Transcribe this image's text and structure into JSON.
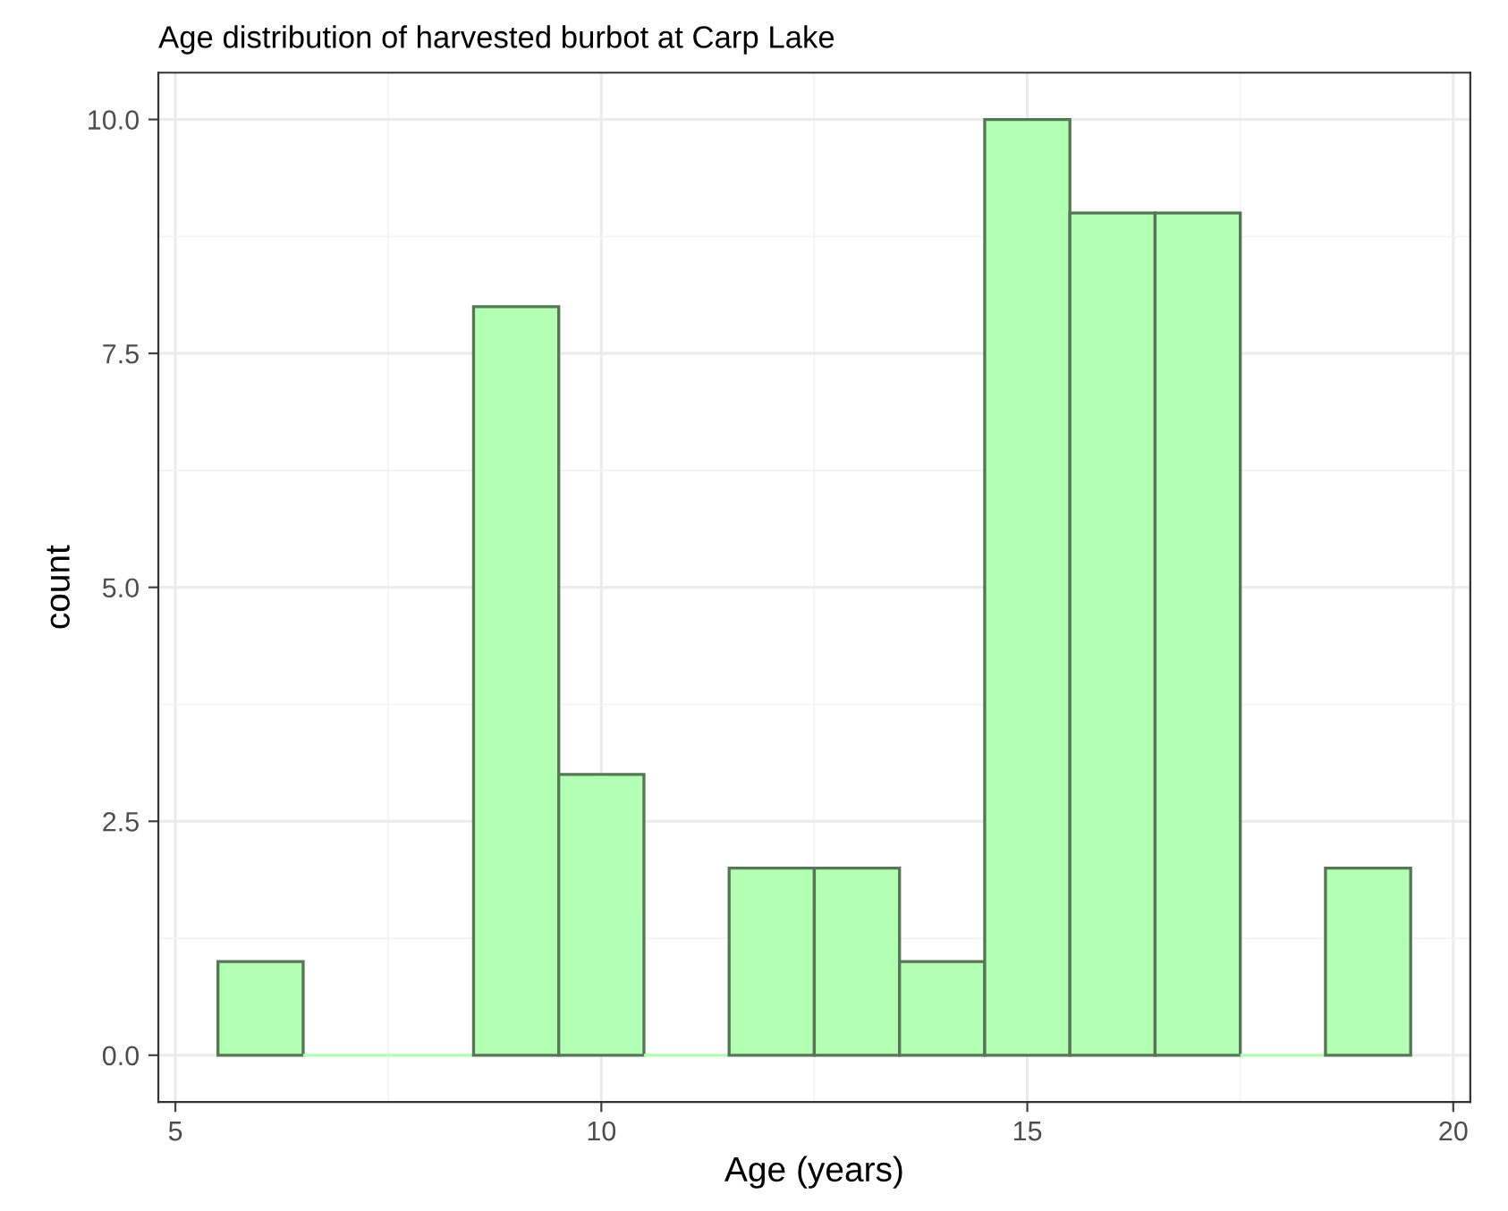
{
  "chart_data": {
    "type": "histogram",
    "title": "Age distribution of harvested burbot at Carp Lake",
    "xlabel": "Age (years)",
    "ylabel": "count",
    "bins": [
      5.5,
      6.5,
      7.5,
      8.5,
      9.5,
      10.5,
      11.5,
      12.5,
      13.5,
      14.5,
      15.5,
      16.5,
      17.5,
      18.5,
      19.5
    ],
    "values": [
      1,
      0,
      0,
      8,
      3,
      0,
      2,
      2,
      1,
      10,
      9,
      9,
      0,
      2
    ],
    "color": "#b3ffb3",
    "xlim": [
      4.8,
      20.2
    ],
    "ylim": [
      -0.5,
      10.5
    ],
    "xticks": [
      5,
      10,
      15,
      20
    ],
    "yticks": [
      {
        "value": 0,
        "label": "0.0"
      },
      {
        "value": 2.5,
        "label": "2.5"
      },
      {
        "value": 5,
        "label": "5.0"
      },
      {
        "value": 7.5,
        "label": "7.5"
      },
      {
        "value": 10,
        "label": "10.0"
      }
    ],
    "grid": true
  }
}
